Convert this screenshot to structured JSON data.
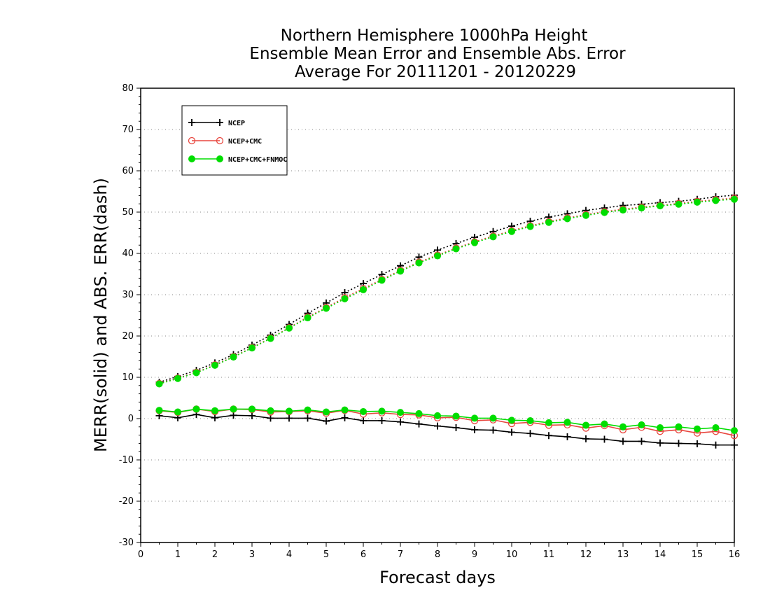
{
  "chart_data": {
    "type": "line",
    "title_lines": [
      "Northern Hemisphere 1000hPa Height",
      "Ensemble Mean Error and Ensemble Abs. Error",
      "Average For 20111201 - 20120229"
    ],
    "xlabel": "Forecast days",
    "ylabel": "MERR(solid) and ABS. ERR(dash)",
    "xlim": [
      0,
      16
    ],
    "ylim": [
      -30,
      80
    ],
    "xticks": [
      0,
      1,
      2,
      3,
      4,
      5,
      6,
      7,
      8,
      9,
      10,
      11,
      12,
      13,
      14,
      15,
      16
    ],
    "yticks": [
      -30,
      -20,
      -10,
      0,
      10,
      20,
      30,
      40,
      50,
      60,
      70,
      80
    ],
    "grid": "horizontal dotted",
    "legend_position": "top-left",
    "x": [
      0.5,
      1,
      1.5,
      2,
      2.5,
      3,
      3.5,
      4,
      4.5,
      5,
      5.5,
      6,
      6.5,
      7,
      7.5,
      8,
      8.5,
      9,
      9.5,
      10,
      10.5,
      11,
      11.5,
      12,
      12.5,
      13,
      13.5,
      14,
      14.5,
      15,
      15.5,
      16
    ],
    "series": [
      {
        "name": "NCEP",
        "color": "#000000",
        "marker": "plus",
        "mean_error": [
          0.7,
          0.2,
          1.0,
          0.2,
          0.8,
          0.7,
          0.1,
          0.1,
          0.1,
          -0.6,
          0.2,
          -0.5,
          -0.5,
          -0.8,
          -1.3,
          -1.8,
          -2.2,
          -2.7,
          -2.8,
          -3.3,
          -3.6,
          -4.1,
          -4.4,
          -4.9,
          -5.0,
          -5.5,
          -5.5,
          -5.9,
          -6.0,
          -6.1,
          -6.4,
          -6.4
        ],
        "abs_error": [
          8.8,
          10.2,
          11.7,
          13.5,
          15.5,
          17.8,
          20.2,
          22.8,
          25.5,
          28.0,
          30.5,
          32.7,
          34.9,
          37.0,
          39.1,
          40.8,
          42.4,
          43.9,
          45.3,
          46.6,
          47.8,
          48.8,
          49.6,
          50.4,
          51.0,
          51.6,
          51.9,
          52.3,
          52.6,
          53.1,
          53.7,
          54.1
        ]
      },
      {
        "name": "NCEP+CMC",
        "color": "#e8473f",
        "marker": "circle-open",
        "mean_error": [
          1.9,
          1.5,
          2.3,
          1.7,
          2.3,
          2.2,
          1.6,
          1.7,
          1.9,
          1.3,
          2.0,
          1.1,
          1.4,
          1.0,
          0.9,
          0.2,
          0.3,
          -0.5,
          -0.3,
          -1.2,
          -0.9,
          -1.6,
          -1.5,
          -2.3,
          -1.7,
          -2.7,
          -2.1,
          -3.1,
          -2.7,
          -3.5,
          -3.1,
          -4.1
        ],
        "abs_error": [
          8.5,
          9.8,
          11.2,
          13.0,
          15.0,
          17.2,
          19.5,
          22.0,
          24.6,
          26.9,
          29.3,
          31.5,
          33.7,
          35.9,
          37.9,
          39.6,
          41.3,
          42.8,
          44.2,
          45.5,
          46.7,
          47.7,
          48.6,
          49.4,
          50.1,
          50.7,
          51.2,
          51.6,
          52.1,
          52.6,
          53.0,
          53.4
        ]
      },
      {
        "name": "NCEP+CMC+FNMOC",
        "color": "#00dd00",
        "marker": "circle-filled",
        "mean_error": [
          2.0,
          1.6,
          2.3,
          1.9,
          2.3,
          2.3,
          1.9,
          1.8,
          2.1,
          1.6,
          2.1,
          1.7,
          1.8,
          1.5,
          1.2,
          0.7,
          0.6,
          0.1,
          0.1,
          -0.4,
          -0.5,
          -1.0,
          -0.9,
          -1.6,
          -1.3,
          -2.0,
          -1.5,
          -2.2,
          -2.0,
          -2.5,
          -2.2,
          -2.9
        ],
        "abs_error": [
          8.4,
          9.7,
          11.1,
          12.9,
          14.9,
          17.1,
          19.4,
          21.9,
          24.4,
          26.7,
          29.0,
          31.2,
          33.5,
          35.7,
          37.7,
          39.4,
          41.1,
          42.6,
          44.0,
          45.3,
          46.5,
          47.5,
          48.4,
          49.2,
          49.9,
          50.5,
          51.0,
          51.5,
          51.9,
          52.4,
          52.8,
          53.1
        ]
      }
    ]
  }
}
